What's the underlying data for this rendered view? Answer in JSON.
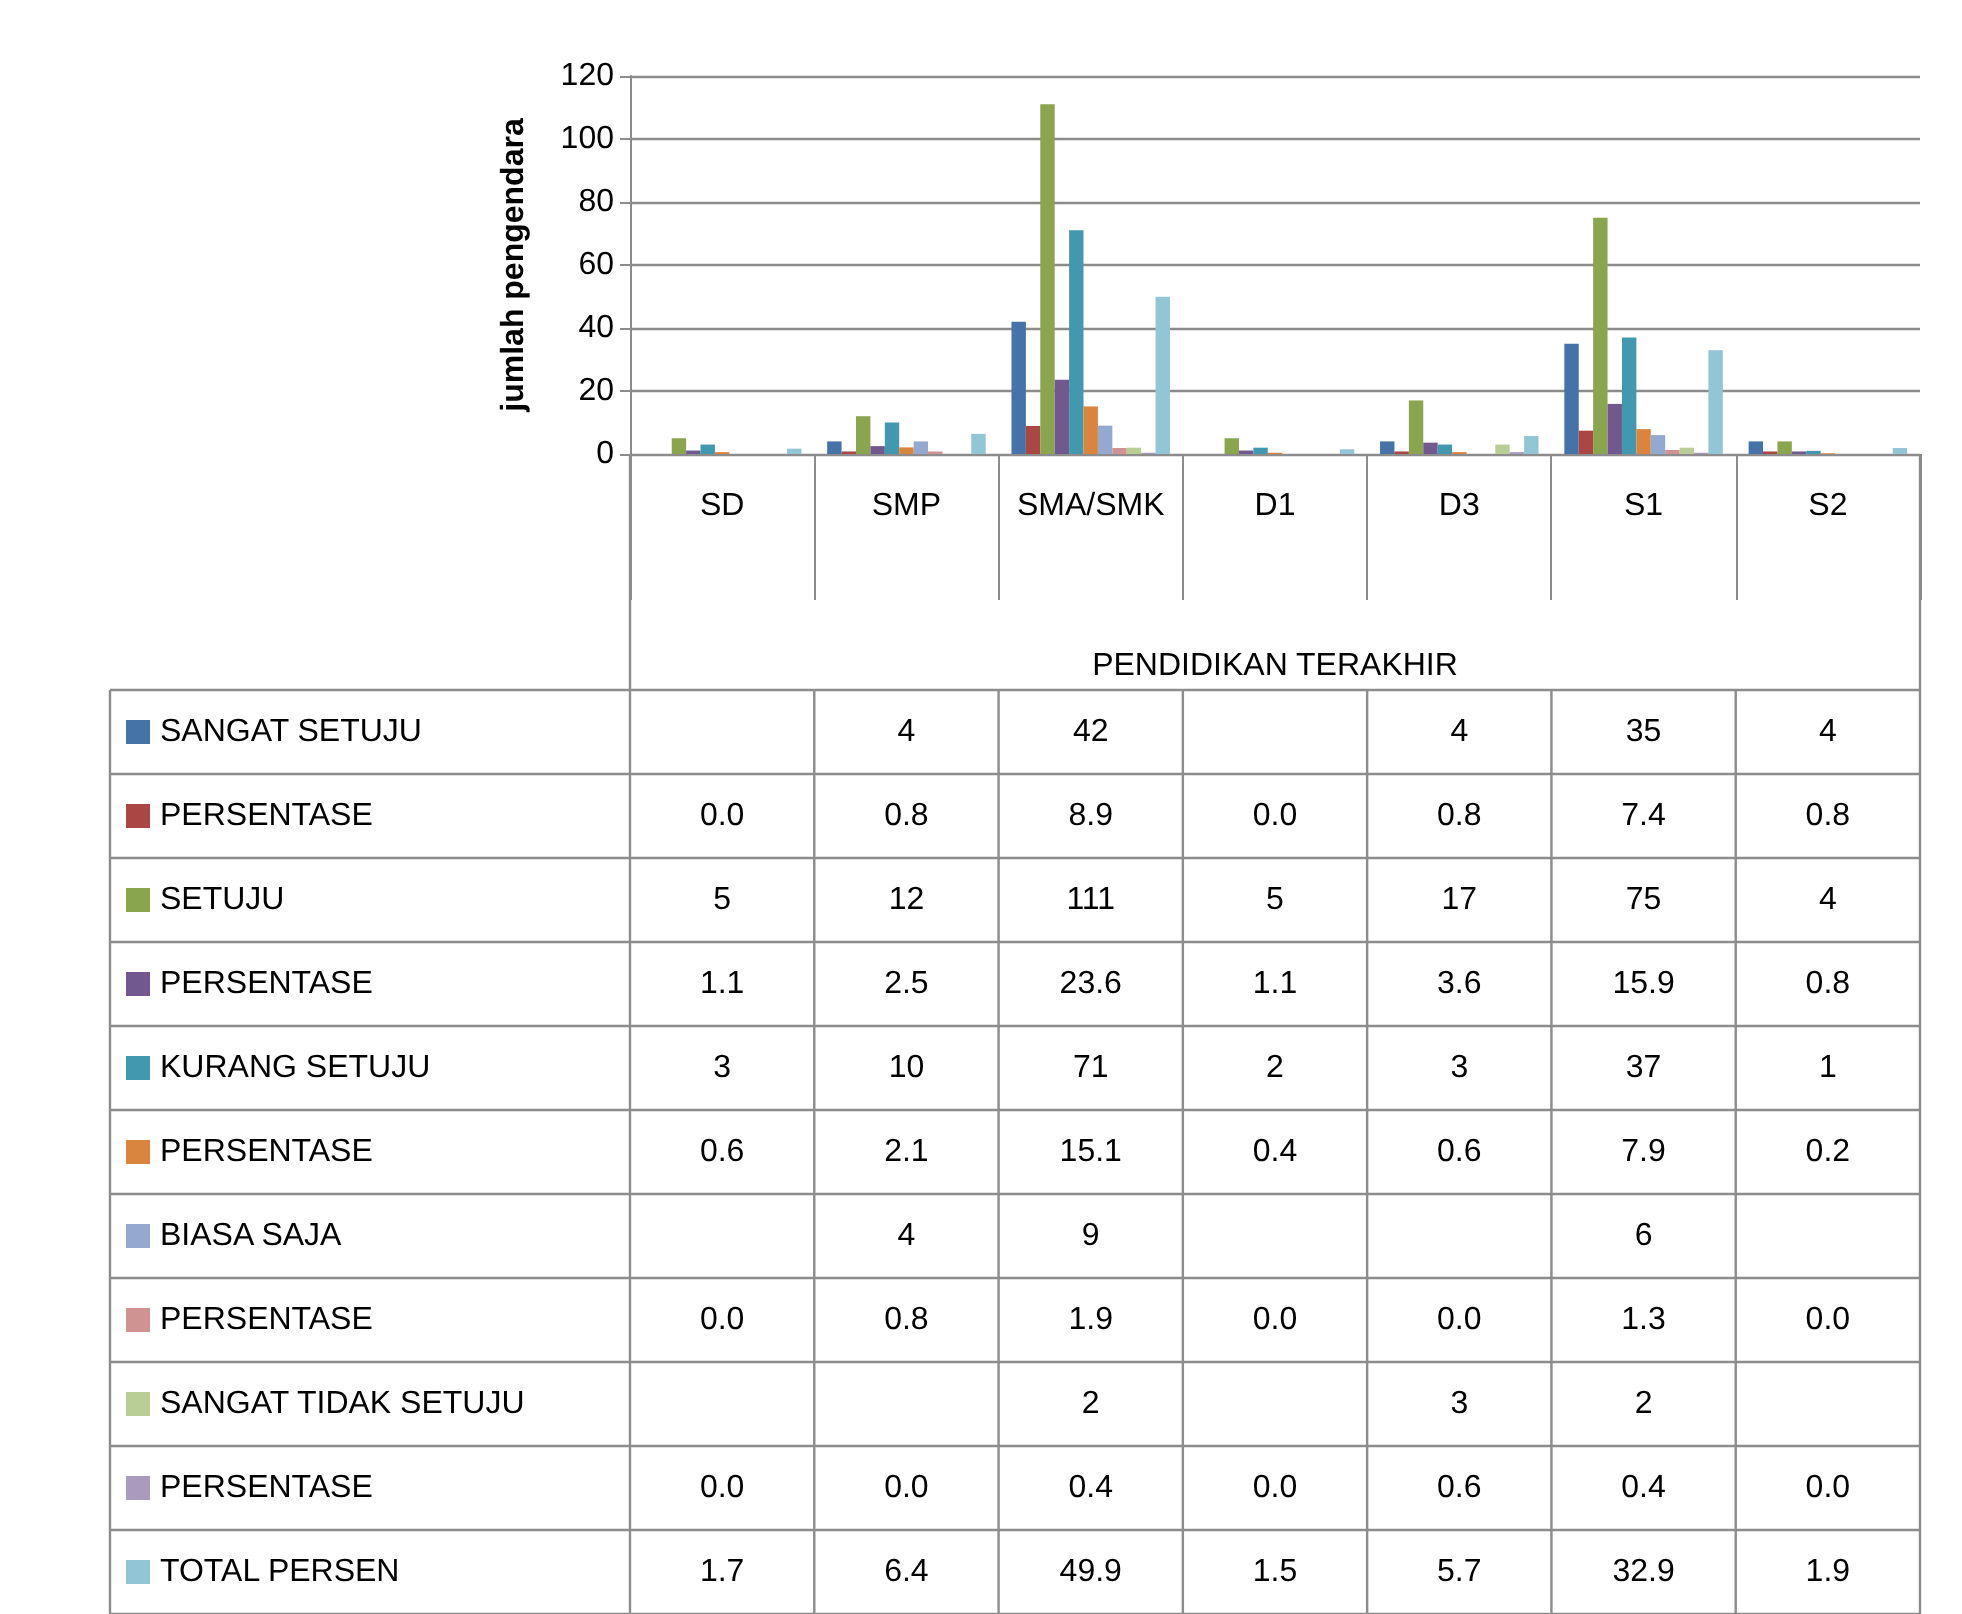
{
  "chart_data": {
    "type": "bar",
    "ylabel": "jumlah pengendara",
    "xlabel": "PENDIDIKAN TERAKHIR",
    "categories": [
      "SD",
      "SMP",
      "SMA/SMK",
      "D1",
      "D3",
      "S1",
      "S2"
    ],
    "ylim": [
      0,
      120
    ],
    "yticks": [
      0,
      20,
      40,
      60,
      80,
      100,
      120
    ],
    "grid": "y",
    "legend": "bottom left",
    "series": [
      {
        "name": "SANGAT SETUJU",
        "color": "#4572a7",
        "values": [
          null,
          4,
          42,
          null,
          4,
          35,
          4
        ],
        "value_labels": [
          null,
          "4",
          "42",
          null,
          "4",
          "35",
          "4"
        ]
      },
      {
        "name": "PERSENTASE",
        "color": "#aa4643",
        "values": [
          0,
          0.8,
          8.9,
          0,
          0.8,
          7.4,
          0.8
        ],
        "value_labels": [
          "0.0",
          "0.8",
          "8.9",
          "0.0",
          "0.8",
          "7.4",
          "0.8"
        ]
      },
      {
        "name": "SETUJU",
        "color": "#89a54e",
        "values": [
          5,
          12,
          111,
          5,
          17,
          75,
          4
        ],
        "value_labels": [
          "5",
          "12",
          "111",
          "5",
          "17",
          "75",
          "4"
        ]
      },
      {
        "name": "PERSENTASE",
        "color": "#71588f",
        "values": [
          1.1,
          2.5,
          23.6,
          1.1,
          3.6,
          15.9,
          0.8
        ],
        "value_labels": [
          "1.1",
          "2.5",
          "23.6",
          "1.1",
          "3.6",
          "15.9",
          "0.8"
        ]
      },
      {
        "name": "KURANG SETUJU",
        "color": "#4198af",
        "values": [
          3,
          10,
          71,
          2,
          3,
          37,
          1
        ],
        "value_labels": [
          "3",
          "10",
          "71",
          "2",
          "3",
          "37",
          "1"
        ]
      },
      {
        "name": "PERSENTASE",
        "color": "#db843d",
        "values": [
          0.6,
          2.1,
          15.1,
          0.4,
          0.6,
          7.9,
          0.2
        ],
        "value_labels": [
          "0.6",
          "2.1",
          "15.1",
          "0.4",
          "0.6",
          "7.9",
          "0.2"
        ]
      },
      {
        "name": "BIASA SAJA",
        "color": "#93a9cf",
        "values": [
          null,
          4,
          9,
          null,
          null,
          6,
          null
        ],
        "value_labels": [
          null,
          "4",
          "9",
          null,
          null,
          "6",
          null
        ]
      },
      {
        "name": "PERSENTASE",
        "color": "#d19392",
        "values": [
          0,
          0.8,
          1.9,
          0,
          0,
          1.3,
          0
        ],
        "value_labels": [
          "0.0",
          "0.8",
          "1.9",
          "0.0",
          "0.0",
          "1.3",
          "0.0"
        ]
      },
      {
        "name": "SANGAT TIDAK SETUJU",
        "color": "#b9cd96",
        "values": [
          null,
          null,
          2,
          null,
          3,
          2,
          null
        ],
        "value_labels": [
          null,
          null,
          "2",
          null,
          "3",
          "2",
          null
        ]
      },
      {
        "name": "PERSENTASE",
        "color": "#a99bbd",
        "values": [
          0,
          0,
          0.4,
          0,
          0.6,
          0.4,
          0
        ],
        "value_labels": [
          "0.0",
          "0.0",
          "0.4",
          "0.0",
          "0.6",
          "0.4",
          "0.0"
        ]
      },
      {
        "name": "TOTAL PERSEN",
        "color": "#92c5d6",
        "values": [
          1.7,
          6.4,
          49.9,
          1.5,
          5.7,
          32.9,
          1.9
        ],
        "value_labels": [
          "1.7",
          "6.4",
          "49.9",
          "1.5",
          "5.7",
          "32.9",
          "1.9"
        ]
      }
    ]
  }
}
